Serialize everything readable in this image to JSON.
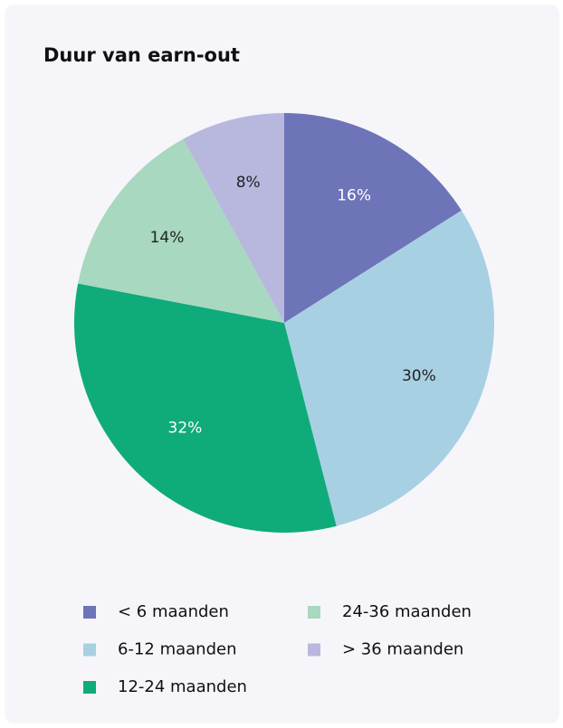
{
  "chart_data": {
    "type": "pie",
    "title": "Duur van earn-out",
    "categories": [
      "< 6 maanden",
      "6-12 maanden",
      "12-24 maanden",
      "24-36 maanden",
      "> 36 maanden"
    ],
    "values": [
      16,
      30,
      32,
      14,
      8
    ],
    "value_labels": [
      "16%",
      "30%",
      "32%",
      "14%",
      "8%"
    ],
    "colors": [
      "#6e74b8",
      "#a8d0e3",
      "#10ab7a",
      "#a8d8bf",
      "#b8b8de"
    ]
  }
}
